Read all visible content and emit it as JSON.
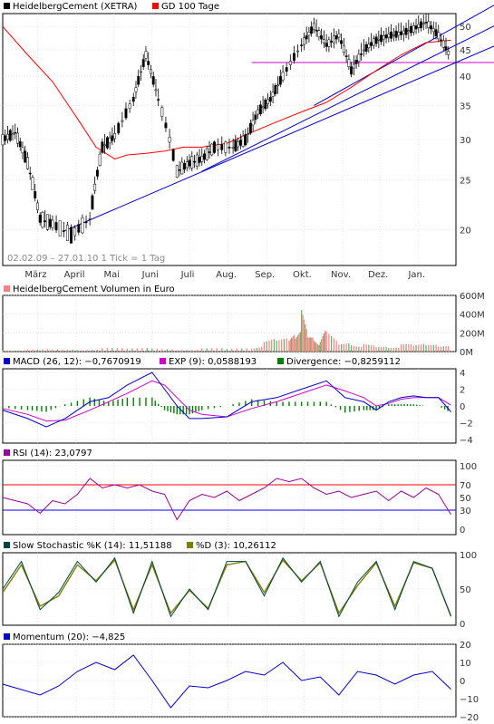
{
  "chart_data": [
    {
      "type": "line",
      "panel": "price",
      "legend": [
        {
          "name": "HeidelbergCement (XETRA)",
          "color": "#000000"
        },
        {
          "name": "GD 100 Tage",
          "color": "#ff0000"
        }
      ],
      "note": "02.02.09 – 27.01.10   1 Tick = 1 Tag",
      "x_months": [
        "März",
        "April",
        "Mai",
        "Juni",
        "Juli",
        "Aug.",
        "Sep.",
        "Okt.",
        "Nov.",
        "Dez.",
        "Jan."
      ],
      "y_ticks": [
        20,
        25,
        30,
        35,
        40,
        45,
        50
      ],
      "ylim": [
        17,
        53
      ],
      "scale": "log",
      "x": [
        0,
        10,
        20,
        30,
        40,
        55,
        70,
        80,
        90,
        105,
        115,
        125,
        140,
        150,
        160,
        170,
        185,
        195,
        205,
        215,
        225,
        240,
        250,
        260,
        270,
        280,
        290,
        300,
        310,
        320,
        330,
        340,
        350,
        360
      ],
      "close": [
        30,
        31,
        27,
        21,
        20.5,
        19.5,
        21,
        29,
        30.5,
        36,
        44,
        36,
        26,
        27,
        27.5,
        29,
        29,
        30,
        34,
        36,
        40,
        46,
        50,
        46,
        48,
        41,
        45,
        47,
        48,
        48.5,
        49.5,
        51,
        48,
        43.5
      ],
      "series": [
        {
          "name": "GD 100 Tage",
          "x": [
            0,
            20,
            40,
            60,
            75,
            90,
            100,
            115,
            130,
            145,
            160,
            180,
            200,
            220,
            240,
            260,
            280,
            300,
            320,
            340,
            360
          ],
          "values": [
            50,
            44,
            39,
            33,
            29,
            27.5,
            28,
            28.2,
            28.5,
            29,
            29,
            29.5,
            31,
            32.5,
            34,
            35.5,
            38,
            41,
            44,
            46.5,
            47
          ]
        }
      ],
      "trendlines": [
        {
          "color": "#0000cc",
          "points": [
            [
              48,
              19.8
            ],
            [
              364,
              42.5
            ]
          ]
        },
        {
          "color": "#0000cc",
          "points": [
            [
              160,
              26
            ],
            [
              364,
              46
            ]
          ]
        },
        {
          "color": "#0000cc",
          "points": [
            [
              250,
              35
            ],
            [
              364,
              50
            ]
          ]
        }
      ],
      "hlines": [
        {
          "color": "#cc00cc",
          "value": 42.5
        }
      ]
    },
    {
      "type": "bar",
      "panel": "volume",
      "legend": [
        {
          "name": "HeidelbergCement Volumen in Euro",
          "color": "#ff8080"
        }
      ],
      "y_ticks": [
        0,
        200,
        400,
        600
      ],
      "y_tick_labels": [
        "0M",
        "200M",
        "400M",
        "600M"
      ],
      "ylim": [
        0,
        600
      ],
      "x": [
        0,
        20,
        40,
        60,
        80,
        100,
        120,
        140,
        160,
        180,
        200,
        210,
        220,
        230,
        235,
        240,
        245,
        250,
        255,
        260,
        270,
        280,
        290,
        300,
        310,
        320,
        330,
        340,
        350,
        360
      ],
      "values": [
        20,
        15,
        25,
        20,
        30,
        30,
        40,
        25,
        30,
        30,
        40,
        80,
        110,
        140,
        230,
        380,
        160,
        160,
        80,
        200,
        90,
        110,
        70,
        50,
        55,
        60,
        60,
        80,
        90,
        100
      ]
    },
    {
      "type": "line",
      "panel": "macd",
      "legend": [
        {
          "name": "MACD (26, 12): −0,7670919",
          "color": "#0000cc"
        },
        {
          "name": "EXP (9): 0,0588193",
          "color": "#cc00cc"
        },
        {
          "name": "Divergence: −0,8259112",
          "color": "#008000"
        }
      ],
      "y_ticks": [
        -4,
        -2,
        0,
        2,
        4
      ],
      "ylim": [
        -4,
        4
      ],
      "x": [
        0,
        20,
        35,
        50,
        70,
        85,
        100,
        120,
        130,
        140,
        150,
        160,
        180,
        200,
        220,
        240,
        260,
        275,
        290,
        300,
        310,
        320,
        330,
        340,
        350,
        360
      ],
      "series": [
        {
          "name": "MACD (26, 12): −0,7670919",
          "values": [
            -0.5,
            -1.5,
            -2.5,
            -1.5,
            0.5,
            1,
            2.5,
            4,
            2,
            0,
            -1.5,
            -1.5,
            -1.3,
            0.5,
            1,
            2,
            3,
            1,
            0.5,
            -0.5,
            0.5,
            1,
            1.2,
            1,
            1,
            -0.7
          ]
        },
        {
          "name": "EXP (9): 0,0588193",
          "values": [
            -0.3,
            -1,
            -1.8,
            -1.7,
            -0.5,
            0.5,
            1.5,
            3,
            2.5,
            1,
            -0.5,
            -1,
            -1.3,
            -0.3,
            0.5,
            1.5,
            2.5,
            1.8,
            1,
            0,
            0.3,
            0.8,
            1,
            1,
            1,
            0.1
          ]
        },
        {
          "name": "Divergence: −0,8259112",
          "values": [
            -0.2,
            -0.5,
            -0.7,
            0.2,
            1,
            0.5,
            1,
            1,
            -0.5,
            -1,
            -1,
            -0.5,
            0,
            0.8,
            0.5,
            0.5,
            0.5,
            -0.8,
            -0.5,
            -0.5,
            0.2,
            0.2,
            0.2,
            0,
            0,
            -0.8
          ]
        }
      ]
    },
    {
      "type": "line",
      "panel": "rsi",
      "legend": [
        {
          "name": "RSI (14): 23,0797",
          "color": "#990099"
        }
      ],
      "y_ticks": [
        0,
        30,
        50,
        70,
        100
      ],
      "ylim": [
        0,
        100
      ],
      "levels": [
        {
          "value": 70,
          "color": "#ff0000"
        },
        {
          "value": 30,
          "color": "#0000ff"
        }
      ],
      "x": [
        0,
        10,
        20,
        30,
        40,
        50,
        60,
        70,
        80,
        90,
        100,
        110,
        120,
        130,
        140,
        150,
        160,
        170,
        180,
        190,
        200,
        210,
        220,
        230,
        240,
        250,
        260,
        270,
        280,
        290,
        300,
        310,
        320,
        330,
        340,
        350,
        360
      ],
      "values": [
        50,
        45,
        40,
        25,
        45,
        40,
        55,
        80,
        65,
        70,
        65,
        70,
        60,
        55,
        15,
        45,
        55,
        50,
        60,
        45,
        55,
        65,
        80,
        75,
        80,
        65,
        55,
        60,
        50,
        55,
        60,
        45,
        60,
        50,
        65,
        55,
        23
      ]
    },
    {
      "type": "line",
      "panel": "stochastic",
      "legend": [
        {
          "name": "Slow Stochastic %K (14): 11,51188",
          "color": "#004444"
        },
        {
          "name": "%D (3): 10,26112",
          "color": "#808000"
        }
      ],
      "y_ticks": [
        0,
        50,
        100
      ],
      "ylim": [
        0,
        100
      ],
      "x": [
        0,
        15,
        30,
        45,
        60,
        75,
        90,
        105,
        120,
        135,
        150,
        165,
        180,
        195,
        210,
        225,
        240,
        255,
        270,
        285,
        300,
        315,
        330,
        345,
        360
      ],
      "series": [
        {
          "name": "Slow Stochastic %K (14): 11,51188",
          "values": [
            50,
            90,
            20,
            45,
            90,
            60,
            95,
            15,
            90,
            10,
            50,
            20,
            90,
            90,
            40,
            95,
            60,
            90,
            10,
            60,
            90,
            20,
            90,
            80,
            11
          ]
        },
        {
          "name": "%D (3): 10,26112",
          "values": [
            45,
            85,
            25,
            40,
            85,
            62,
            92,
            20,
            85,
            15,
            48,
            22,
            85,
            90,
            45,
            92,
            62,
            88,
            15,
            55,
            88,
            25,
            88,
            80,
            10
          ]
        }
      ]
    },
    {
      "type": "line",
      "panel": "momentum",
      "legend": [
        {
          "name": "Momentum (20): −4,825",
          "color": "#0000cc"
        }
      ],
      "y_ticks": [
        -20,
        -10,
        0,
        10,
        20
      ],
      "ylim": [
        -20,
        20
      ],
      "x": [
        0,
        15,
        30,
        45,
        60,
        75,
        90,
        105,
        120,
        135,
        150,
        165,
        180,
        195,
        210,
        225,
        240,
        255,
        270,
        285,
        300,
        315,
        330,
        345,
        360
      ],
      "values": [
        -2,
        -5,
        -8,
        -3,
        5,
        10,
        6,
        14,
        0,
        -15,
        -3,
        -4,
        0,
        5,
        3,
        10,
        0,
        2,
        -8,
        5,
        3,
        -2,
        3,
        5,
        -4.8
      ]
    }
  ]
}
